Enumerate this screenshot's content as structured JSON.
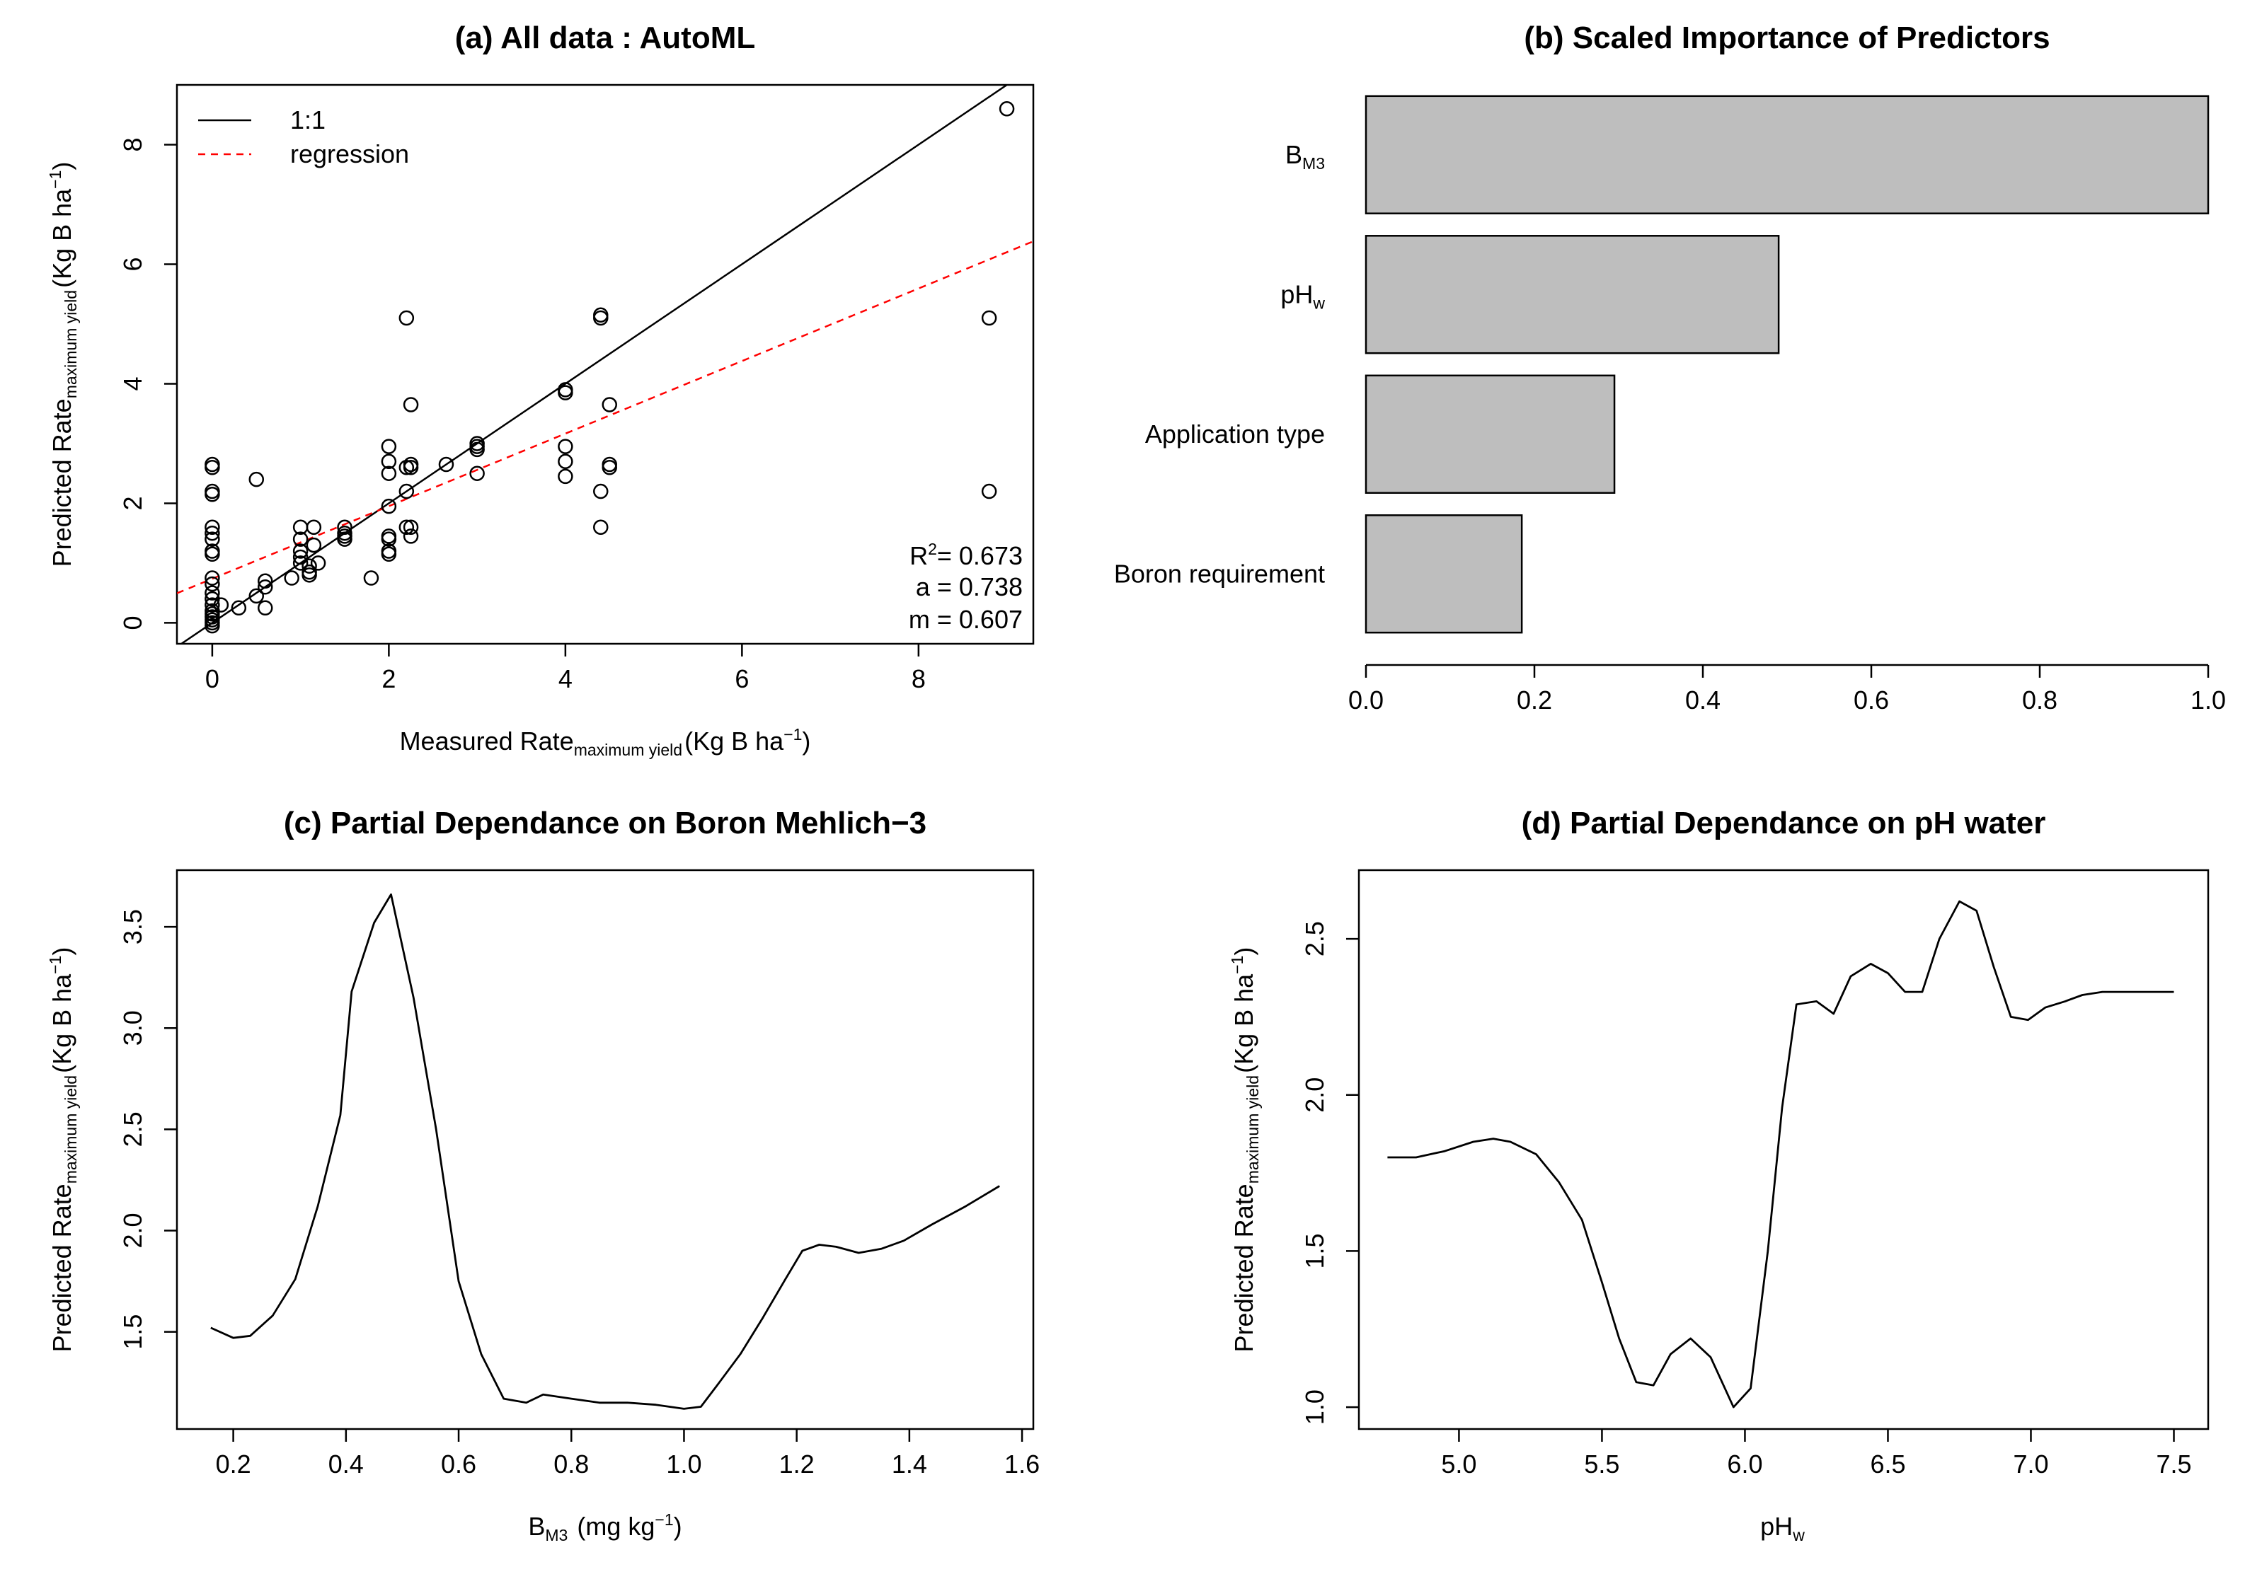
{
  "chart_data": [
    {
      "id": "a",
      "type": "scatter",
      "title": "(a) All data : AutoML",
      "xlabel": {
        "main": "Measured Rate",
        "sub": "maximum yield",
        "unit_pre": "(Kg B ha",
        "unit_sup": "−1",
        "unit_post": ")"
      },
      "ylabel": {
        "main": "Predicted Rate",
        "sub": "maximum yield",
        "unit_pre": "(Kg B ha",
        "unit_sup": "−1",
        "unit_post": ")"
      },
      "xlim": [
        -0.4,
        9.3
      ],
      "ylim": [
        -0.35,
        9.0
      ],
      "xticks": [
        0,
        2,
        4,
        6,
        8
      ],
      "yticks": [
        0,
        2,
        4,
        6,
        8
      ],
      "legend": {
        "position": "top-left",
        "entries": [
          {
            "label": "1:1",
            "style": "solid",
            "color": "#000000"
          },
          {
            "label": "regression",
            "style": "dashed",
            "color": "#ff0000"
          }
        ]
      },
      "lines": {
        "one_to_one": {
          "intercept": 0,
          "slope": 1
        },
        "regression": {
          "intercept": 0.738,
          "slope": 0.607
        }
      },
      "stats": {
        "r2_label": "R",
        "r2_sup": "2",
        "r2_value": "= 0.673",
        "a_text": "a  = 0.738",
        "m_text": "m = 0.607"
      },
      "points": [
        [
          0,
          2.65
        ],
        [
          0,
          2.6
        ],
        [
          0,
          2.2
        ],
        [
          0,
          2.15
        ],
        [
          0,
          1.6
        ],
        [
          0,
          1.5
        ],
        [
          0,
          1.4
        ],
        [
          0,
          1.2
        ],
        [
          0,
          1.15
        ],
        [
          0,
          0.75
        ],
        [
          0,
          0.65
        ],
        [
          0,
          0.5
        ],
        [
          0,
          0.4
        ],
        [
          0,
          0.3
        ],
        [
          0,
          0.2
        ],
        [
          0,
          0.15
        ],
        [
          0,
          0.1
        ],
        [
          0,
          0.05
        ],
        [
          0,
          0.0
        ],
        [
          0,
          -0.05
        ],
        [
          0.1,
          0.3
        ],
        [
          0.3,
          0.25
        ],
        [
          0.5,
          0.45
        ],
        [
          0.5,
          2.4
        ],
        [
          0.6,
          0.6
        ],
        [
          0.6,
          0.7
        ],
        [
          0.6,
          0.25
        ],
        [
          0.9,
          0.75
        ],
        [
          1.0,
          1.6
        ],
        [
          1.0,
          1.4
        ],
        [
          1.0,
          1.2
        ],
        [
          1.0,
          1.1
        ],
        [
          1.0,
          1.0
        ],
        [
          1.1,
          0.95
        ],
        [
          1.1,
          0.85
        ],
        [
          1.1,
          0.8
        ],
        [
          1.15,
          1.6
        ],
        [
          1.15,
          1.3
        ],
        [
          1.2,
          1.0
        ],
        [
          1.5,
          1.6
        ],
        [
          1.5,
          1.5
        ],
        [
          1.5,
          1.45
        ],
        [
          1.5,
          1.4
        ],
        [
          1.8,
          0.75
        ],
        [
          2.0,
          2.95
        ],
        [
          2.0,
          2.7
        ],
        [
          2.0,
          2.5
        ],
        [
          2.0,
          1.95
        ],
        [
          2.0,
          1.45
        ],
        [
          2.0,
          1.4
        ],
        [
          2.0,
          1.2
        ],
        [
          2.0,
          1.15
        ],
        [
          2.2,
          5.1
        ],
        [
          2.2,
          2.6
        ],
        [
          2.2,
          2.2
        ],
        [
          2.2,
          1.6
        ],
        [
          2.25,
          3.65
        ],
        [
          2.25,
          2.65
        ],
        [
          2.25,
          2.6
        ],
        [
          2.25,
          1.6
        ],
        [
          2.25,
          1.45
        ],
        [
          2.65,
          2.65
        ],
        [
          3.0,
          3.0
        ],
        [
          3.0,
          2.95
        ],
        [
          3.0,
          2.9
        ],
        [
          3.0,
          2.5
        ],
        [
          4.0,
          3.9
        ],
        [
          4.0,
          3.85
        ],
        [
          4.0,
          2.95
        ],
        [
          4.0,
          2.7
        ],
        [
          4.0,
          2.45
        ],
        [
          4.4,
          5.1
        ],
        [
          4.4,
          5.15
        ],
        [
          4.4,
          2.2
        ],
        [
          4.4,
          1.6
        ],
        [
          4.5,
          3.65
        ],
        [
          4.5,
          2.65
        ],
        [
          4.5,
          2.6
        ],
        [
          8.8,
          5.1
        ],
        [
          8.8,
          2.2
        ],
        [
          9.0,
          8.6
        ]
      ]
    },
    {
      "id": "b",
      "type": "bar",
      "orientation": "horizontal",
      "title": "(b) Scaled Importance of Predictors",
      "categories": [
        {
          "main": "B",
          "sub": "M3"
        },
        {
          "main": "pH",
          "sub": "w"
        },
        {
          "main": "Application type",
          "sub": ""
        },
        {
          "main": "Boron requirement",
          "sub": ""
        }
      ],
      "values": [
        1.0,
        0.49,
        0.295,
        0.185
      ],
      "xlim": [
        0,
        1.0
      ],
      "xticks": [
        "0.0",
        "0.2",
        "0.4",
        "0.6",
        "0.8",
        "1.0"
      ],
      "bar_color": "#bebebe"
    },
    {
      "id": "c",
      "type": "line",
      "title": "(c) Partial Dependance on Boron Mehlich−3",
      "xlabel": {
        "main": "B",
        "sub": "M3",
        "unit_pre": " (mg kg",
        "unit_sup": "−1",
        "unit_post": ")"
      },
      "ylabel": {
        "main": "Predicted Rate",
        "sub": "maximum yield",
        "unit_pre": "(Kg B ha",
        "unit_sup": "−1",
        "unit_post": ")"
      },
      "xlim": [
        0.1,
        1.62
      ],
      "ylim": [
        1.02,
        3.78
      ],
      "xticks": [
        "0.2",
        "0.4",
        "0.6",
        "0.8",
        "1.0",
        "1.2",
        "1.4",
        "1.6"
      ],
      "yticks": [
        "1.5",
        "2.0",
        "2.5",
        "3.0",
        "3.5"
      ],
      "x": [
        0.16,
        0.2,
        0.23,
        0.27,
        0.31,
        0.35,
        0.39,
        0.41,
        0.45,
        0.48,
        0.52,
        0.56,
        0.6,
        0.64,
        0.68,
        0.72,
        0.75,
        0.8,
        0.85,
        0.9,
        0.95,
        1.0,
        1.03,
        1.06,
        1.1,
        1.14,
        1.18,
        1.21,
        1.24,
        1.27,
        1.31,
        1.35,
        1.39,
        1.44,
        1.5,
        1.56
      ],
      "y": [
        1.52,
        1.47,
        1.48,
        1.58,
        1.76,
        2.12,
        2.57,
        3.18,
        3.52,
        3.66,
        3.15,
        2.5,
        1.75,
        1.39,
        1.17,
        1.15,
        1.19,
        1.17,
        1.15,
        1.15,
        1.14,
        1.12,
        1.13,
        1.24,
        1.39,
        1.57,
        1.76,
        1.9,
        1.93,
        1.92,
        1.89,
        1.91,
        1.95,
        2.03,
        2.12,
        2.22
      ]
    },
    {
      "id": "d",
      "type": "line",
      "title": "(d) Partial Dependance on pH water",
      "xlabel": {
        "main": "pH",
        "sub": "w",
        "unit_pre": "",
        "unit_sup": "",
        "unit_post": ""
      },
      "ylabel": {
        "main": "Predicted Rate",
        "sub": "maximum yield",
        "unit_pre": "(Kg B ha",
        "unit_sup": "−1",
        "unit_post": ")"
      },
      "xlim": [
        4.65,
        7.62
      ],
      "ylim": [
        0.93,
        2.72
      ],
      "xticks": [
        "5.0",
        "5.5",
        "6.0",
        "6.5",
        "7.0",
        "7.5"
      ],
      "yticks": [
        "1.0",
        "1.5",
        "2.0",
        "2.5"
      ],
      "x": [
        4.75,
        4.85,
        4.95,
        5.05,
        5.12,
        5.18,
        5.27,
        5.35,
        5.43,
        5.5,
        5.56,
        5.62,
        5.68,
        5.74,
        5.81,
        5.88,
        5.96,
        6.02,
        6.08,
        6.13,
        6.18,
        6.25,
        6.31,
        6.37,
        6.44,
        6.5,
        6.56,
        6.62,
        6.68,
        6.75,
        6.81,
        6.87,
        6.93,
        6.99,
        7.05,
        7.12,
        7.18,
        7.25,
        7.31,
        7.37,
        7.43,
        7.5
      ],
      "y": [
        1.8,
        1.8,
        1.82,
        1.85,
        1.86,
        1.85,
        1.81,
        1.72,
        1.6,
        1.4,
        1.22,
        1.08,
        1.07,
        1.17,
        1.22,
        1.16,
        1.0,
        1.06,
        1.5,
        1.96,
        2.29,
        2.3,
        2.26,
        2.38,
        2.42,
        2.39,
        2.33,
        2.33,
        2.5,
        2.62,
        2.59,
        2.41,
        2.25,
        2.24,
        2.28,
        2.3,
        2.32,
        2.33,
        2.33,
        2.33,
        2.33,
        2.33
      ]
    }
  ]
}
